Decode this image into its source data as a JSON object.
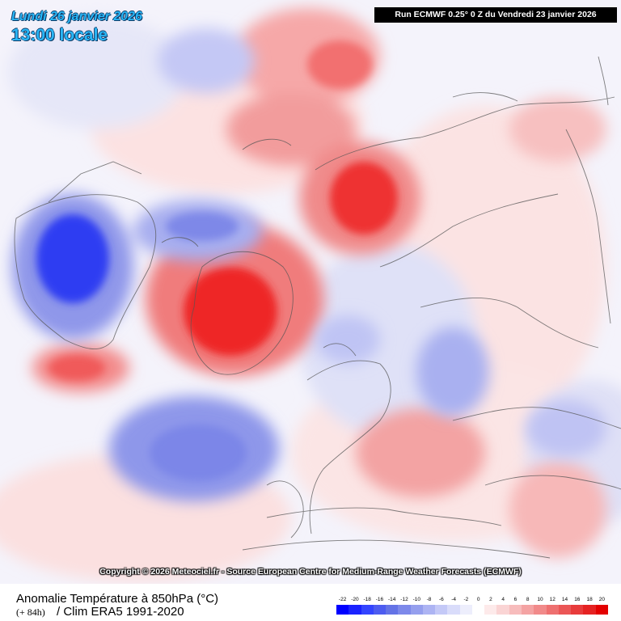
{
  "header": {
    "date": "Lundi 26 janvier 2026",
    "time": "13:00 locale",
    "run_info": "Run ECMWF 0.25° 0 Z du Vendredi 23 janvier 2026"
  },
  "map": {
    "projection": "polar stereographic (Northern Hemisphere)",
    "copyright": "Copyright © 2026 Meteociel.fr - Source European Centre for Medium-Range Weather Forecasts (ECMWF)"
  },
  "footer": {
    "title": "Anomalie Température à 850hPa (°C)",
    "lead_time": "(+ 84h)",
    "climatology": "/ Clim ERA5 1991-2020"
  },
  "legend": {
    "labels": [
      "-22",
      "-20",
      "-18",
      "-16",
      "-14",
      "-12",
      "-10",
      "-8",
      "-6",
      "-4",
      "-2",
      "0",
      "2",
      "4",
      "6",
      "8",
      "10",
      "12",
      "14",
      "16",
      "18",
      "20"
    ],
    "colors": [
      "#0000ff",
      "#1a22ff",
      "#3344ff",
      "#4d5cf0",
      "#6473e6",
      "#7d89ea",
      "#959fee",
      "#adb4f3",
      "#c4c9f7",
      "#d9dcfa",
      "#edeefc",
      "#ffffff",
      "#fdeaea",
      "#fad4d4",
      "#f7bcbc",
      "#f4a3a3",
      "#f18a8a",
      "#ee7070",
      "#eb5656",
      "#e83b3b",
      "#e52222",
      "#e30000"
    ]
  },
  "colors": {
    "header_text": "#29b6f6",
    "run_box_bg": "#000000",
    "warm_anomaly": "#ff1a1a",
    "cold_anomaly": "#1a1aff"
  }
}
